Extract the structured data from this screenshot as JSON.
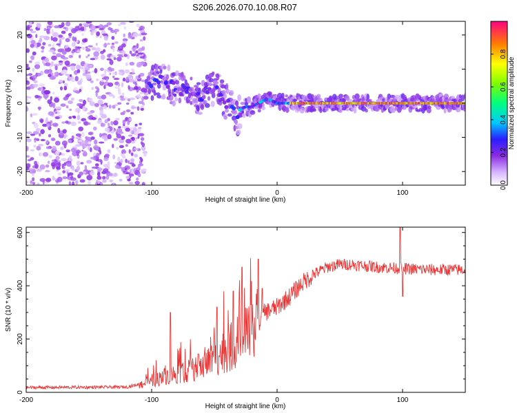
{
  "title": "S206.2026.070.10.08.R07",
  "chart_data": [
    {
      "type": "heatmap",
      "xlabel": "Height of straight line (km)",
      "ylabel": "Frequency (Hz)",
      "xlim": [
        -200,
        150
      ],
      "ylim": [
        -24,
        24
      ],
      "x_ticks": [
        -200,
        -100,
        0,
        100
      ],
      "y_ticks": [
        -20,
        -10,
        0,
        10,
        20
      ],
      "colorbar": {
        "label": "Normalized spectral amplitude",
        "range": [
          0,
          1
        ],
        "ticks": [
          0.0,
          0.2,
          0.4,
          0.6,
          0.8
        ],
        "tick_labels": [
          "0.0",
          "0.2",
          "0.4",
          "0.6",
          "0.8"
        ]
      },
      "features": {
        "noise_region_x": [
          -200,
          -105
        ],
        "noise_amplitude": 0.15,
        "track": [
          [
            -105,
            3
          ],
          [
            -100,
            6
          ],
          [
            -95,
            7
          ],
          [
            -90,
            6
          ],
          [
            -85,
            5
          ],
          [
            -80,
            4
          ],
          [
            -75,
            4
          ],
          [
            -70,
            3
          ],
          [
            -65,
            2
          ],
          [
            -60,
            2
          ],
          [
            -55,
            4
          ],
          [
            -50,
            5
          ],
          [
            -45,
            2
          ],
          [
            -40,
            0
          ],
          [
            -35,
            -2
          ],
          [
            -32,
            -6
          ],
          [
            -30,
            -2
          ],
          [
            -25,
            -1
          ],
          [
            -20,
            -1
          ],
          [
            -15,
            0
          ],
          [
            -10,
            1
          ],
          [
            -5,
            1
          ],
          [
            0,
            0
          ],
          [
            10,
            0
          ],
          [
            150,
            0
          ]
        ],
        "track_peak_amplitude": 0.9
      }
    },
    {
      "type": "line",
      "series": [
        {
          "name": "SNR",
          "color": "#ee3333"
        }
      ],
      "xlabel": "Height of straight line (km)",
      "ylabel": "SNR (10 * v/v)",
      "xlim": [
        -200,
        150
      ],
      "ylim": [
        0,
        620
      ],
      "x_ticks": [
        -200,
        -100,
        0,
        100
      ],
      "y_ticks": [
        0,
        200,
        400,
        600
      ],
      "trend": [
        [
          -200,
          18
        ],
        [
          -120,
          20
        ],
        [
          -100,
          40
        ],
        [
          -90,
          60
        ],
        [
          -80,
          70
        ],
        [
          -70,
          80
        ],
        [
          -60,
          100
        ],
        [
          -50,
          130
        ],
        [
          -40,
          160
        ],
        [
          -30,
          190
        ],
        [
          -20,
          220
        ],
        [
          -15,
          260
        ],
        [
          -10,
          300
        ],
        [
          0,
          320
        ],
        [
          10,
          360
        ],
        [
          20,
          410
        ],
        [
          30,
          445
        ],
        [
          40,
          470
        ],
        [
          50,
          480
        ],
        [
          60,
          480
        ],
        [
          80,
          470
        ],
        [
          100,
          465
        ],
        [
          120,
          460
        ],
        [
          150,
          460
        ]
      ],
      "spikes": [
        [
          -85,
          300
        ],
        [
          -48,
          320
        ],
        [
          -35,
          380
        ],
        [
          -28,
          470
        ],
        [
          -15,
          500
        ],
        [
          -12,
          390
        ],
        [
          98,
          630
        ],
        [
          100,
          360
        ]
      ]
    }
  ]
}
